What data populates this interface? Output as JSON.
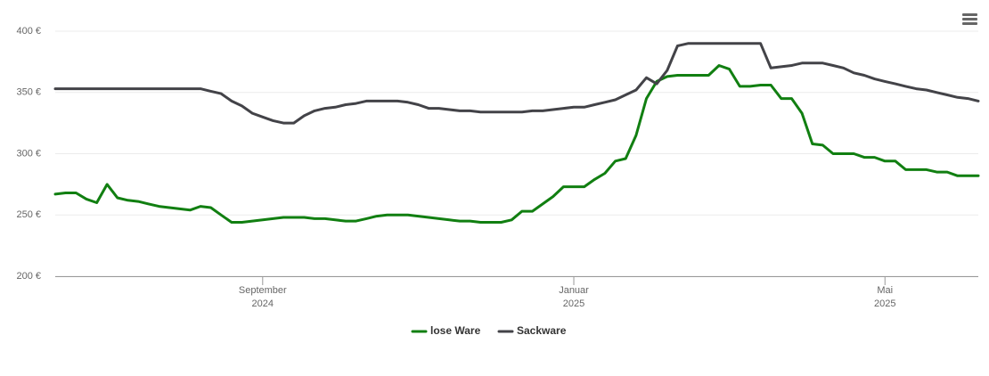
{
  "chart_data": {
    "type": "line",
    "categories": [
      null,
      null,
      null,
      null,
      null,
      null,
      null,
      null,
      null,
      null,
      null,
      null,
      null,
      null,
      null,
      null,
      null,
      null,
      null,
      null,
      "September 2024",
      null,
      null,
      null,
      null,
      null,
      null,
      null,
      null,
      null,
      null,
      null,
      null,
      null,
      null,
      null,
      null,
      null,
      null,
      null,
      null,
      null,
      null,
      null,
      null,
      null,
      null,
      null,
      null,
      null,
      "Januar 2025",
      null,
      null,
      null,
      null,
      null,
      null,
      null,
      null,
      null,
      null,
      null,
      null,
      null,
      null,
      null,
      null,
      null,
      null,
      null,
      null,
      null,
      null,
      null,
      null,
      null,
      null,
      null,
      null,
      null,
      "Mai 2025",
      null,
      null,
      null,
      null,
      null,
      null,
      null,
      null,
      null
    ],
    "series": [
      {
        "name": "lose Ware",
        "color": "#117f11",
        "values": [
          267,
          268,
          268,
          263,
          260,
          275,
          264,
          262,
          261,
          259,
          257,
          256,
          255,
          254,
          257,
          256,
          250,
          244,
          244,
          245,
          246,
          247,
          248,
          248,
          248,
          247,
          247,
          246,
          245,
          245,
          247,
          249,
          250,
          250,
          250,
          249,
          248,
          247,
          246,
          245,
          245,
          244,
          244,
          244,
          246,
          253,
          253,
          259,
          265,
          273,
          273,
          273,
          279,
          284,
          294,
          296,
          315,
          345,
          359,
          363,
          364,
          364,
          364,
          364,
          372,
          369,
          355,
          355,
          356,
          356,
          345,
          345,
          333,
          308,
          307,
          300,
          300,
          300,
          297,
          297,
          294,
          294,
          287,
          287,
          287,
          285,
          285,
          282,
          282,
          282
        ]
      },
      {
        "name": "Sackware",
        "color": "#434348",
        "values": [
          353,
          353,
          353,
          353,
          353,
          353,
          353,
          353,
          353,
          353,
          353,
          353,
          353,
          353,
          353,
          351,
          349,
          343,
          339,
          333,
          330,
          327,
          325,
          325,
          331,
          335,
          337,
          338,
          340,
          341,
          343,
          343,
          343,
          343,
          342,
          340,
          337,
          337,
          336,
          335,
          335,
          334,
          334,
          334,
          334,
          334,
          335,
          335,
          336,
          337,
          338,
          338,
          340,
          342,
          344,
          348,
          352,
          362,
          357,
          368,
          388,
          390,
          390,
          390,
          390,
          390,
          390,
          390,
          390,
          370,
          371,
          372,
          374,
          374,
          374,
          372,
          370,
          366,
          364,
          361,
          359,
          357,
          355,
          353,
          352,
          350,
          348,
          346,
          345,
          343
        ]
      }
    ],
    "ylim": [
      200,
      400
    ],
    "yticks": [
      {
        "value": 200,
        "label": "200 €"
      },
      {
        "value": 250,
        "label": "250 €"
      },
      {
        "value": 300,
        "label": "300 €"
      },
      {
        "value": 350,
        "label": "350 €"
      },
      {
        "value": 400,
        "label": "400 €"
      }
    ],
    "grid": true
  }
}
